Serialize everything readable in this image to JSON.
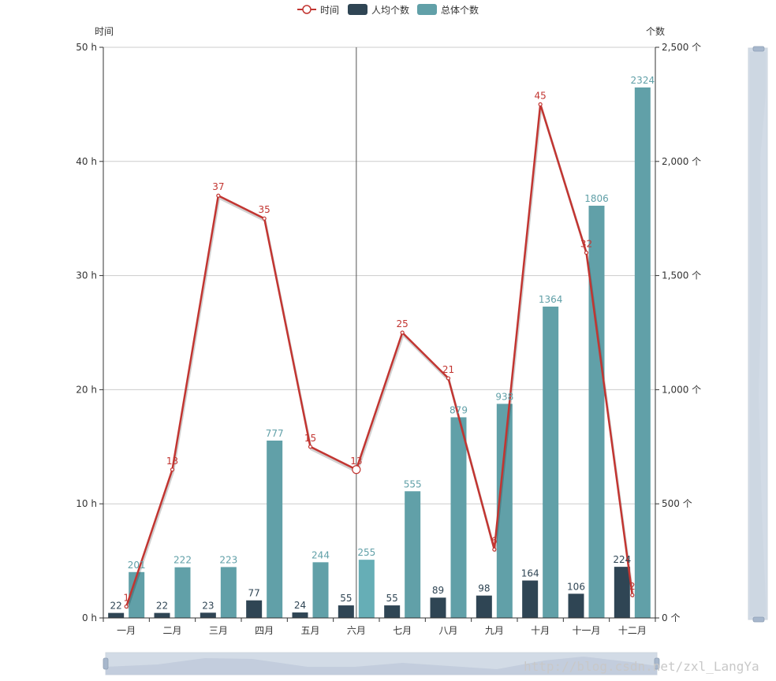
{
  "legend": {
    "items": [
      {
        "label": "时间",
        "color": "#c23531",
        "kind": "line"
      },
      {
        "label": "人均个数",
        "color": "#2f4554",
        "kind": "bar"
      },
      {
        "label": "总体个数",
        "color": "#61a0a8",
        "kind": "bar"
      }
    ]
  },
  "watermark": "http://blog.csdn.net/zxl_LangYa",
  "chart_data": {
    "type": "bar",
    "categories": [
      "一月",
      "二月",
      "三月",
      "四月",
      "五月",
      "六月",
      "七月",
      "八月",
      "九月",
      "十月",
      "十一月",
      "十二月"
    ],
    "y_left": {
      "name": "时间",
      "min": 0,
      "max": 50,
      "ticks": [
        0,
        10,
        20,
        30,
        40,
        50
      ],
      "tick_suffix": " h"
    },
    "y_right": {
      "name": "个数",
      "min": 0,
      "max": 2500,
      "ticks": [
        0,
        500,
        1000,
        1500,
        2000,
        2500
      ],
      "tick_suffix": " 个"
    },
    "grid": true,
    "legend_position": "top-center",
    "series": [
      {
        "name": "人均个数",
        "type": "bar",
        "axis": "right",
        "color": "#2f4554",
        "values": [
          22,
          22,
          23,
          77,
          24,
          55,
          55,
          89,
          98,
          164,
          106,
          224
        ]
      },
      {
        "name": "总体个数",
        "type": "bar",
        "axis": "right",
        "color": "#61a0a8",
        "values": [
          201,
          222,
          223,
          777,
          244,
          255,
          555,
          879,
          938,
          1364,
          1806,
          2324
        ]
      },
      {
        "name": "时间",
        "type": "line",
        "axis": "left",
        "color": "#c23531",
        "values": [
          1,
          13,
          37,
          35,
          15,
          13,
          25,
          21,
          6,
          45,
          32,
          2
        ]
      }
    ],
    "highlight_category": "六月"
  }
}
